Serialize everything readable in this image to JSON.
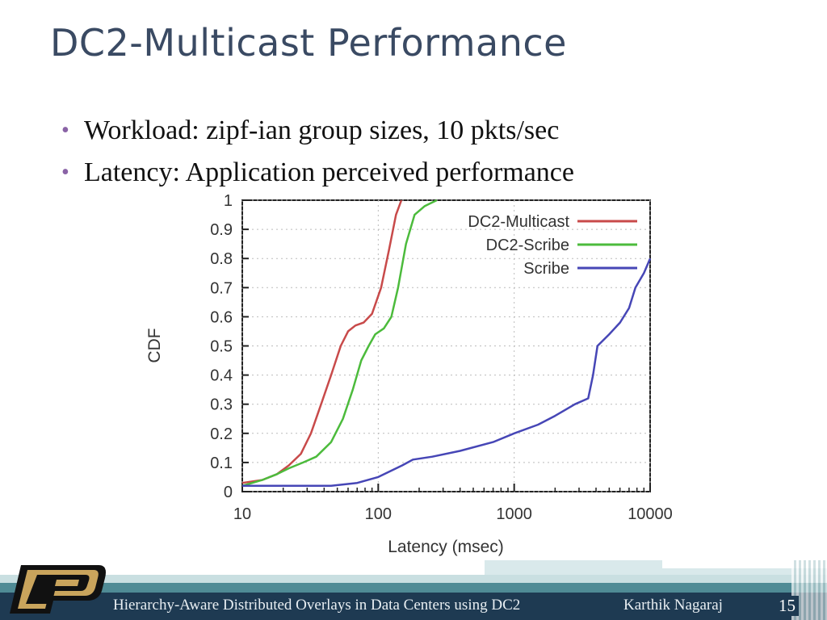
{
  "slide": {
    "title": "DC2-Multicast Performance",
    "bullets": [
      "Workload: zipf-ian group sizes, 10 pkts/sec",
      "Latency: Application perceived performance"
    ],
    "footer_text": "Hierarchy-Aware Distributed Overlays in Data Centers using DC2",
    "footer_author": "Karthik Nagaraj",
    "slide_number": "15",
    "logo_icon": "purdue-p-logo-icon",
    "colors": {
      "title": "#3a4a63",
      "bullet": "#8a63a6",
      "footer_dark": "#1e3a52",
      "footer_mid": "#4f8b95"
    }
  },
  "chart_data": {
    "type": "line",
    "title": "",
    "xlabel": "Latency (msec)",
    "ylabel": "CDF",
    "x_scale": "log",
    "xlim": [
      10,
      10000
    ],
    "ylim": [
      0,
      1
    ],
    "x_ticks": [
      "10",
      "100",
      "1000",
      "10000"
    ],
    "y_ticks": [
      "0",
      "0.1",
      "0.2",
      "0.3",
      "0.4",
      "0.5",
      "0.6",
      "0.7",
      "0.8",
      "0.9",
      "1"
    ],
    "legend_position": "top-right",
    "series": [
      {
        "name": "DC2-Multicast",
        "color": "#c84a4a",
        "points": [
          [
            10,
            0.03
          ],
          [
            14,
            0.04
          ],
          [
            18,
            0.06
          ],
          [
            22,
            0.09
          ],
          [
            27,
            0.13
          ],
          [
            32,
            0.2
          ],
          [
            38,
            0.3
          ],
          [
            45,
            0.4
          ],
          [
            53,
            0.5
          ],
          [
            60,
            0.55
          ],
          [
            68,
            0.57
          ],
          [
            78,
            0.58
          ],
          [
            90,
            0.61
          ],
          [
            105,
            0.7
          ],
          [
            120,
            0.83
          ],
          [
            135,
            0.95
          ],
          [
            148,
            1.0
          ]
        ]
      },
      {
        "name": "DC2-Scribe",
        "color": "#4cbb3c",
        "points": [
          [
            10,
            0.02
          ],
          [
            14,
            0.04
          ],
          [
            18,
            0.06
          ],
          [
            22,
            0.08
          ],
          [
            28,
            0.1
          ],
          [
            35,
            0.12
          ],
          [
            45,
            0.17
          ],
          [
            55,
            0.25
          ],
          [
            65,
            0.35
          ],
          [
            75,
            0.45
          ],
          [
            85,
            0.5
          ],
          [
            95,
            0.54
          ],
          [
            110,
            0.56
          ],
          [
            125,
            0.6
          ],
          [
            140,
            0.7
          ],
          [
            160,
            0.85
          ],
          [
            185,
            0.95
          ],
          [
            220,
            0.98
          ],
          [
            270,
            1.0
          ]
        ]
      },
      {
        "name": "Scribe",
        "color": "#4646b6",
        "points": [
          [
            10,
            0.02
          ],
          [
            20,
            0.02
          ],
          [
            30,
            0.02
          ],
          [
            45,
            0.02
          ],
          [
            70,
            0.03
          ],
          [
            100,
            0.05
          ],
          [
            150,
            0.09
          ],
          [
            180,
            0.11
          ],
          [
            250,
            0.12
          ],
          [
            400,
            0.14
          ],
          [
            700,
            0.17
          ],
          [
            1000,
            0.2
          ],
          [
            1500,
            0.23
          ],
          [
            2000,
            0.26
          ],
          [
            2800,
            0.3
          ],
          [
            3500,
            0.32
          ],
          [
            3800,
            0.4
          ],
          [
            4100,
            0.5
          ],
          [
            5000,
            0.54
          ],
          [
            6000,
            0.58
          ],
          [
            7000,
            0.63
          ],
          [
            7800,
            0.7
          ],
          [
            9000,
            0.75
          ],
          [
            10000,
            0.8
          ]
        ]
      }
    ]
  }
}
